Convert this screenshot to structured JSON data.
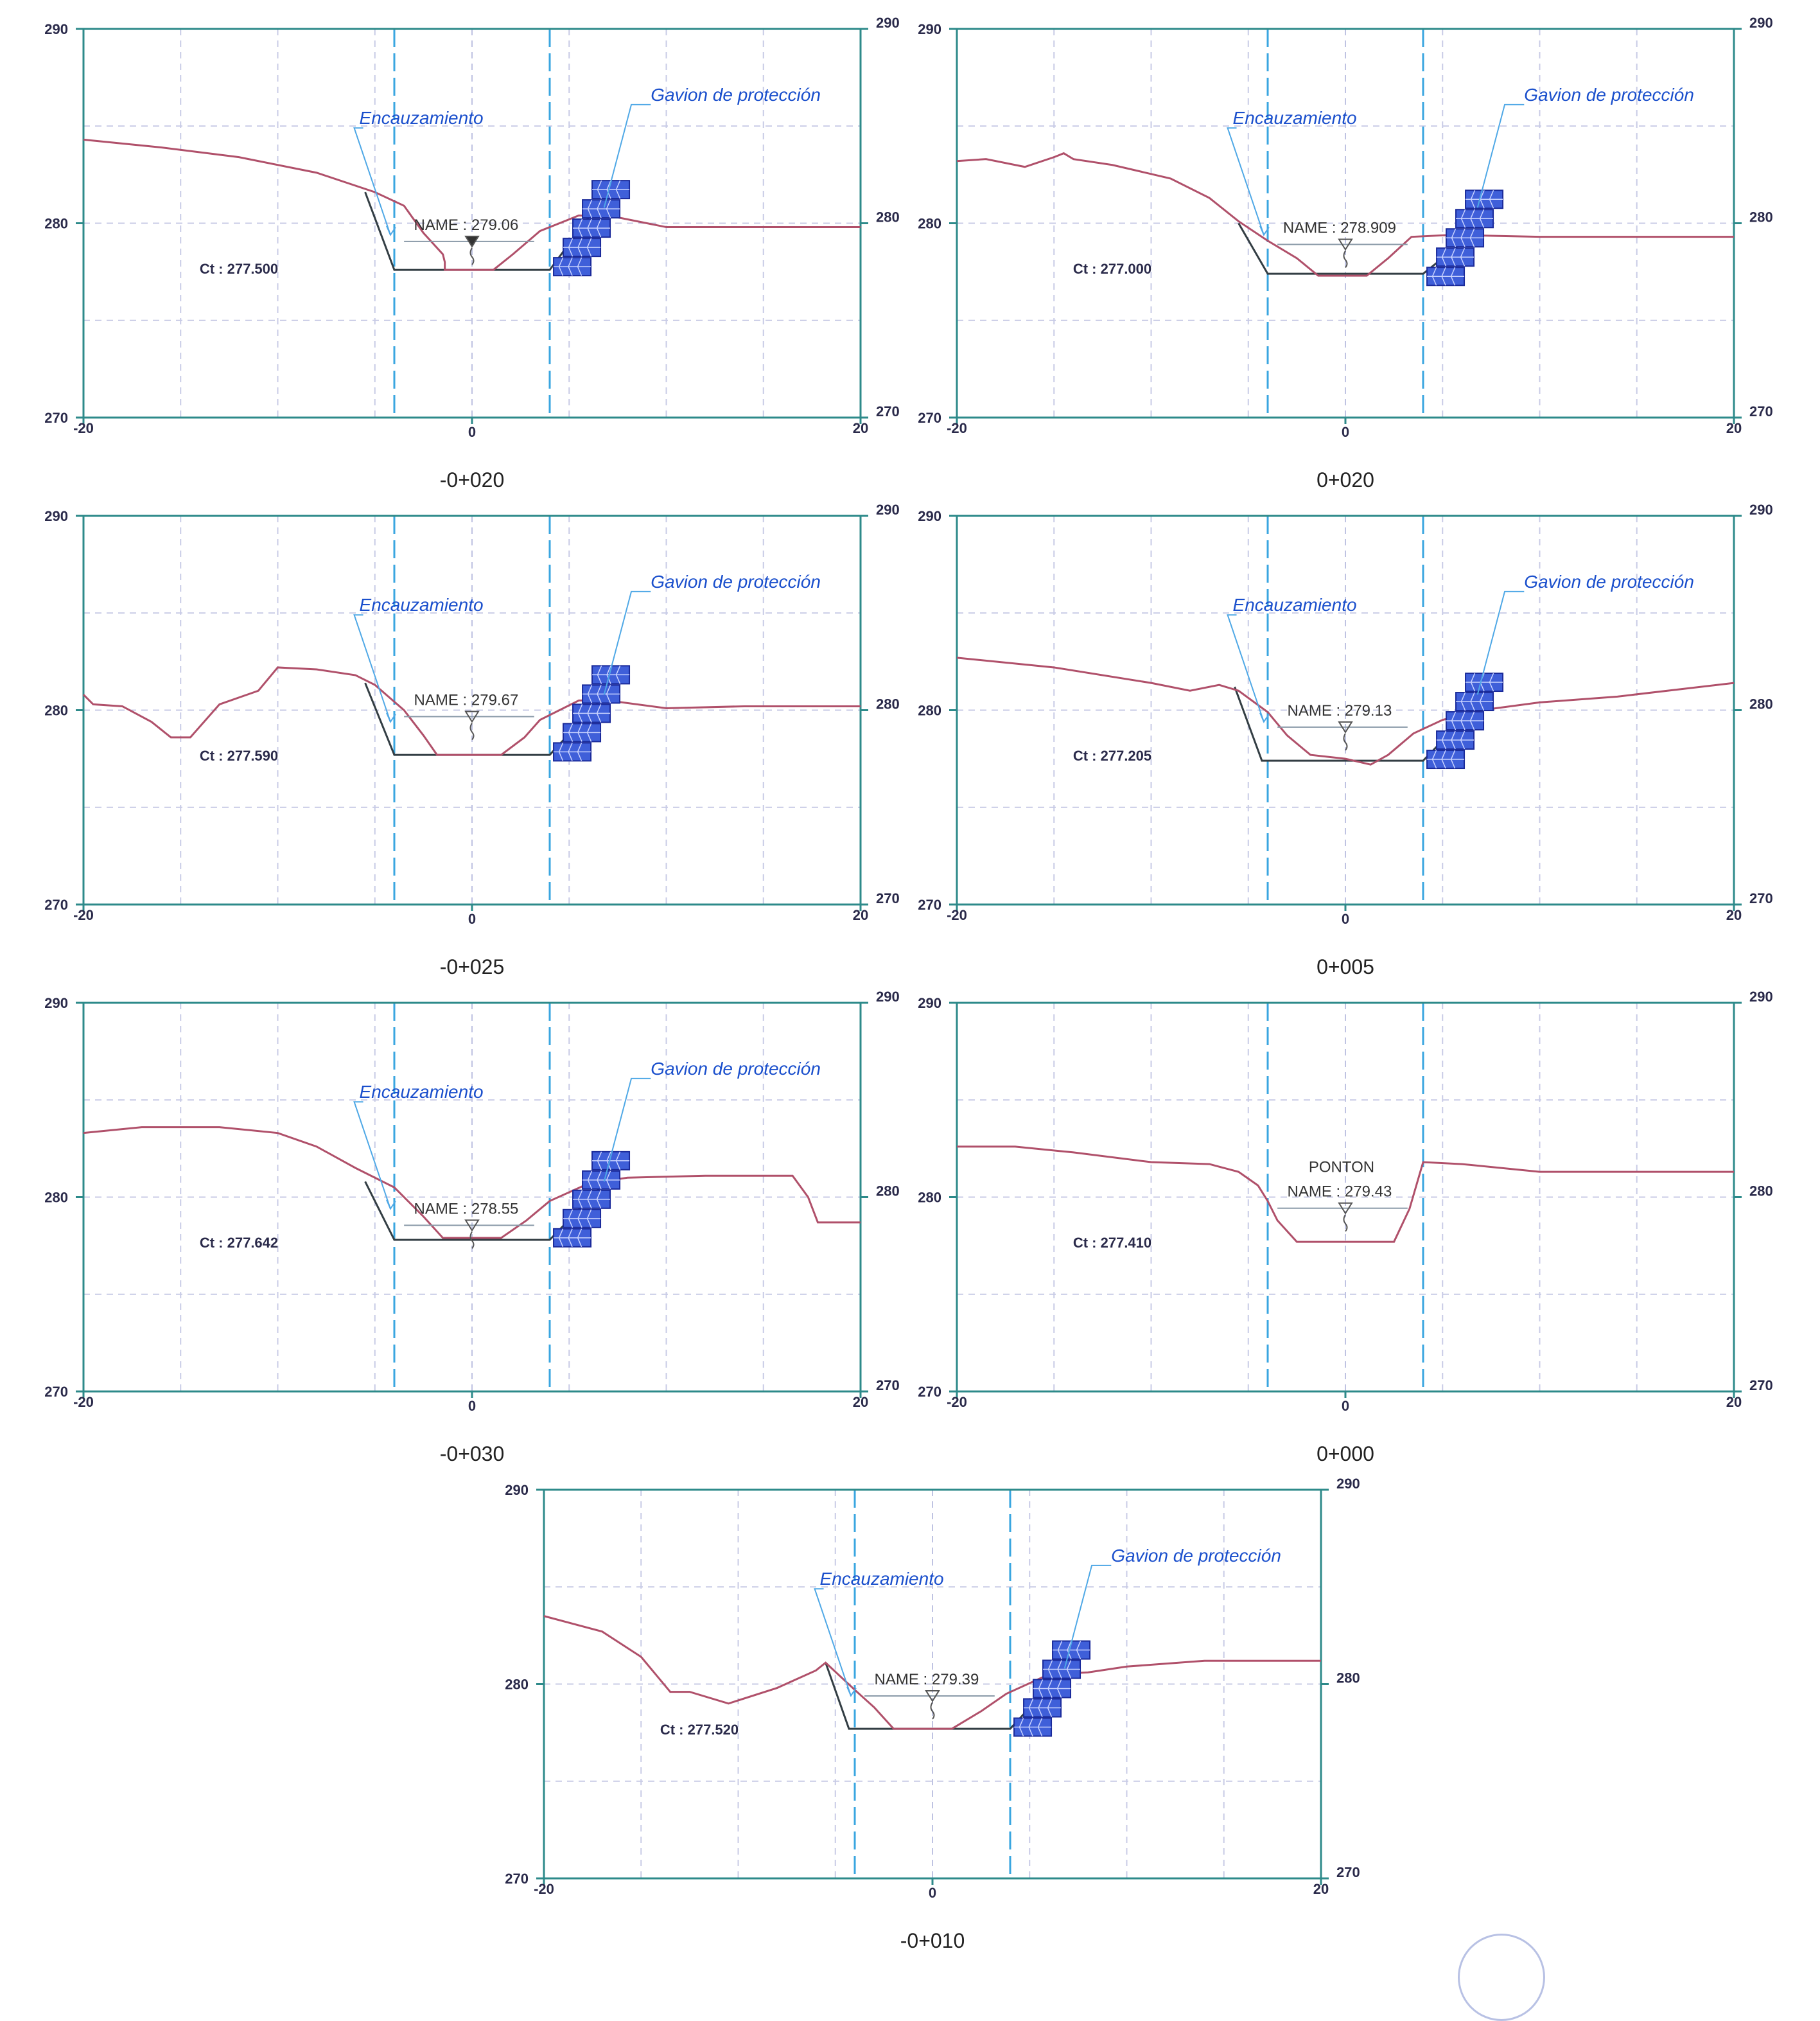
{
  "charts": [
    {
      "title": "-0+020",
      "ct": "Ct : 277.500",
      "name_label": "NAME : 279.06",
      "ponton_label": "",
      "channel_label": "Encauzamiento",
      "gabion_label": "Gavion de protección",
      "has_channel": true,
      "has_gabion": true,
      "wl_filled": true,
      "x_ticks": [
        "-20",
        "0",
        "20"
      ],
      "y_ticks": [
        "270",
        "280",
        "290"
      ],
      "y_ticks_right": [
        "270",
        "280",
        "290"
      ],
      "chart_data": {
        "type": "line",
        "xlim": [
          -20,
          20
        ],
        "ylim": [
          270,
          290
        ],
        "grid": true,
        "water_level": 279.06,
        "bed_level": 277.5,
        "terrain": [
          [
            -20,
            284.3
          ],
          [
            -16,
            283.9
          ],
          [
            -12,
            283.4
          ],
          [
            -8,
            282.6
          ],
          [
            -5,
            281.6
          ],
          [
            -3.5,
            280.9
          ],
          [
            -2.5,
            279.5
          ],
          [
            -1.5,
            278.4
          ],
          [
            -1.5,
            278.4
          ],
          [
            -1.4,
            278.0
          ],
          [
            -1.4,
            277.6
          ],
          [
            1.1,
            277.6
          ],
          [
            2.1,
            278.4
          ],
          [
            3.5,
            279.6
          ],
          [
            5.5,
            280.4
          ],
          [
            7.5,
            280.3
          ],
          [
            10,
            279.8
          ],
          [
            14,
            279.8
          ],
          [
            20,
            279.8
          ]
        ],
        "channel": [
          [
            -5.5,
            281.6
          ],
          [
            -4,
            277.6
          ],
          [
            4,
            277.6
          ],
          [
            6,
            280.3
          ]
        ]
      }
    },
    {
      "title": "0+020",
      "ct": "Ct : 277.000",
      "name_label": "NAME : 278.909",
      "ponton_label": "",
      "channel_label": "Encauzamiento",
      "gabion_label": "Gavion de protección",
      "has_channel": true,
      "has_gabion": true,
      "wl_filled": false,
      "x_ticks": [
        "-20",
        "0",
        "20"
      ],
      "y_ticks": [
        "270",
        "280",
        "290"
      ],
      "y_ticks_right": [
        "270",
        "280",
        "290"
      ],
      "chart_data": {
        "type": "line",
        "xlim": [
          -20,
          20
        ],
        "ylim": [
          270,
          290
        ],
        "grid": true,
        "water_level": 278.909,
        "bed_level": 277.0,
        "terrain": [
          [
            -20,
            283.2
          ],
          [
            -18.5,
            283.3
          ],
          [
            -16.5,
            282.9
          ],
          [
            -15,
            283.4
          ],
          [
            -14.5,
            283.6
          ],
          [
            -14,
            283.3
          ],
          [
            -12,
            283.0
          ],
          [
            -9,
            282.3
          ],
          [
            -7,
            281.3
          ],
          [
            -5.5,
            280.1
          ],
          [
            -4,
            279.1
          ],
          [
            -2.5,
            278.2
          ],
          [
            -1.4,
            277.3
          ],
          [
            1.1,
            277.3
          ],
          [
            2.2,
            278.2
          ],
          [
            3.4,
            279.3
          ],
          [
            5.5,
            279.4
          ],
          [
            10,
            279.3
          ],
          [
            20,
            279.3
          ]
        ],
        "channel": [
          [
            -5.5,
            280.0
          ],
          [
            -4,
            277.4
          ],
          [
            4,
            277.4
          ],
          [
            6.5,
            279.4
          ]
        ]
      }
    },
    {
      "title": "-0+025",
      "ct": "Ct : 277.590",
      "name_label": "NAME : 279.67",
      "ponton_label": "",
      "channel_label": "Encauzamiento",
      "gabion_label": "Gavion de protección",
      "has_channel": true,
      "has_gabion": true,
      "wl_filled": false,
      "x_ticks": [
        "-20",
        "0",
        "20"
      ],
      "y_ticks": [
        "270",
        "280",
        "290"
      ],
      "y_ticks_right": [
        "270",
        "280",
        "290"
      ],
      "chart_data": {
        "type": "line",
        "xlim": [
          -20,
          20
        ],
        "ylim": [
          270,
          290
        ],
        "grid": true,
        "water_level": 279.67,
        "bed_level": 277.59,
        "terrain": [
          [
            -20,
            280.8
          ],
          [
            -19.5,
            280.3
          ],
          [
            -18,
            280.2
          ],
          [
            -16.5,
            279.4
          ],
          [
            -15.5,
            278.6
          ],
          [
            -14.5,
            278.6
          ],
          [
            -13,
            280.3
          ],
          [
            -11,
            281.0
          ],
          [
            -10,
            282.2
          ],
          [
            -8,
            282.1
          ],
          [
            -6,
            281.8
          ],
          [
            -5,
            281.3
          ],
          [
            -3.5,
            280.0
          ],
          [
            -2.5,
            278.7
          ],
          [
            -1.8,
            277.7
          ],
          [
            1.5,
            277.7
          ],
          [
            2.7,
            278.6
          ],
          [
            3.5,
            279.5
          ],
          [
            5.5,
            280.5
          ],
          [
            7,
            280.5
          ],
          [
            10,
            280.1
          ],
          [
            14,
            280.2
          ],
          [
            20,
            280.2
          ]
        ],
        "channel": [
          [
            -5.5,
            281.4
          ],
          [
            -4,
            277.7
          ],
          [
            4,
            277.7
          ],
          [
            6.5,
            280.4
          ]
        ]
      }
    },
    {
      "title": "0+005",
      "ct": "Ct : 277.205",
      "name_label": "NAME : 279.13",
      "ponton_label": "",
      "channel_label": "Encauzamiento",
      "gabion_label": "Gavion de protección",
      "has_channel": true,
      "has_gabion": true,
      "wl_filled": false,
      "x_ticks": [
        "-20",
        "0",
        "20"
      ],
      "y_ticks": [
        "270",
        "280",
        "290"
      ],
      "y_ticks_right": [
        "270",
        "280",
        "290"
      ],
      "chart_data": {
        "type": "line",
        "xlim": [
          -20,
          20
        ],
        "ylim": [
          270,
          290
        ],
        "grid": true,
        "water_level": 279.13,
        "bed_level": 277.205,
        "terrain": [
          [
            -20,
            282.7
          ],
          [
            -15,
            282.2
          ],
          [
            -10,
            281.4
          ],
          [
            -8,
            281.0
          ],
          [
            -6.5,
            281.3
          ],
          [
            -5.5,
            281.0
          ],
          [
            -4,
            279.9
          ],
          [
            -3,
            278.7
          ],
          [
            -1.8,
            277.7
          ],
          [
            0,
            277.5
          ],
          [
            1.3,
            277.2
          ],
          [
            2.2,
            277.7
          ],
          [
            3.5,
            278.8
          ],
          [
            5,
            279.5
          ],
          [
            7,
            280.0
          ],
          [
            10,
            280.4
          ],
          [
            14,
            280.7
          ],
          [
            20,
            281.4
          ]
        ],
        "channel": [
          [
            -5.7,
            281.2
          ],
          [
            -4.3,
            277.4
          ],
          [
            4,
            277.4
          ],
          [
            7,
            280.5
          ]
        ]
      }
    },
    {
      "title": "-0+030",
      "ct": "Ct : 277.642",
      "name_label": "NAME : 278.55",
      "ponton_label": "",
      "channel_label": "Encauzamiento",
      "gabion_label": "Gavion de protección",
      "has_channel": true,
      "has_gabion": true,
      "wl_filled": false,
      "x_ticks": [
        "-20",
        "0",
        "20"
      ],
      "y_ticks": [
        "270",
        "280",
        "290"
      ],
      "y_ticks_right": [
        "270",
        "280",
        "290"
      ],
      "chart_data": {
        "type": "line",
        "xlim": [
          -20,
          20
        ],
        "ylim": [
          270,
          290
        ],
        "grid": true,
        "water_level": 278.55,
        "bed_level": 277.642,
        "terrain": [
          [
            -20,
            283.3
          ],
          [
            -17,
            283.6
          ],
          [
            -13,
            283.6
          ],
          [
            -10,
            283.3
          ],
          [
            -8,
            282.6
          ],
          [
            -6,
            281.5
          ],
          [
            -4,
            280.5
          ],
          [
            -2.5,
            279.0
          ],
          [
            -1.5,
            277.9
          ],
          [
            1.5,
            277.9
          ],
          [
            2.8,
            278.8
          ],
          [
            4,
            279.8
          ],
          [
            6,
            280.7
          ],
          [
            8,
            281.0
          ],
          [
            12,
            281.1
          ],
          [
            16.5,
            281.1
          ],
          [
            17.3,
            280.0
          ],
          [
            17.8,
            278.7
          ],
          [
            20,
            278.7
          ]
        ],
        "channel": [
          [
            -5.5,
            280.8
          ],
          [
            -4,
            277.8
          ],
          [
            4,
            277.8
          ],
          [
            6.8,
            280.7
          ]
        ]
      }
    },
    {
      "title": "0+000",
      "ct": "Ct : 277.410",
      "name_label": "NAME : 279.43",
      "ponton_label": "PONTON",
      "channel_label": "",
      "gabion_label": "",
      "has_channel": false,
      "has_gabion": false,
      "wl_filled": false,
      "x_ticks": [
        "-20",
        "0",
        "20"
      ],
      "y_ticks": [
        "270",
        "280",
        "290"
      ],
      "y_ticks_right": [
        "270",
        "280",
        "290"
      ],
      "chart_data": {
        "type": "line",
        "xlim": [
          -20,
          20
        ],
        "ylim": [
          270,
          290
        ],
        "grid": true,
        "water_level": 279.43,
        "bed_level": 277.41,
        "terrain": [
          [
            -20,
            282.6
          ],
          [
            -17,
            282.6
          ],
          [
            -14,
            282.3
          ],
          [
            -10,
            281.8
          ],
          [
            -7,
            281.7
          ],
          [
            -5.5,
            281.3
          ],
          [
            -4.5,
            280.6
          ],
          [
            -4,
            279.8
          ],
          [
            -3.5,
            278.8
          ],
          [
            -2.5,
            277.7
          ],
          [
            2.5,
            277.7
          ],
          [
            3.3,
            279.4
          ],
          [
            4,
            281.8
          ],
          [
            6,
            281.7
          ],
          [
            10,
            281.3
          ],
          [
            14,
            281.3
          ],
          [
            20,
            281.3
          ]
        ],
        "channel": []
      }
    },
    {
      "title": "-0+010",
      "ct": "Ct : 277.520",
      "name_label": "NAME : 279.39",
      "ponton_label": "",
      "channel_label": "Encauzamiento",
      "gabion_label": "Gavion de protección",
      "has_channel": true,
      "has_gabion": true,
      "wl_filled": false,
      "x_ticks": [
        "-20",
        "0",
        "20"
      ],
      "y_ticks": [
        "270",
        "280",
        "290"
      ],
      "y_ticks_right": [
        "270",
        "280",
        "290"
      ],
      "chart_data": {
        "type": "line",
        "xlim": [
          -20,
          20
        ],
        "ylim": [
          270,
          290
        ],
        "grid": true,
        "water_level": 279.39,
        "bed_level": 277.52,
        "terrain": [
          [
            -20,
            283.5
          ],
          [
            -17,
            282.7
          ],
          [
            -15,
            281.4
          ],
          [
            -13.5,
            279.6
          ],
          [
            -12.5,
            279.6
          ],
          [
            -10.5,
            279.0
          ],
          [
            -8,
            279.8
          ],
          [
            -6,
            280.7
          ],
          [
            -5.5,
            281.1
          ],
          [
            -4,
            279.7
          ],
          [
            -3,
            278.8
          ],
          [
            -2,
            277.7
          ],
          [
            1,
            277.7
          ],
          [
            2.5,
            278.6
          ],
          [
            3.8,
            279.5
          ],
          [
            6,
            280.5
          ],
          [
            8,
            280.6
          ],
          [
            10,
            280.9
          ],
          [
            14,
            281.2
          ],
          [
            20,
            281.2
          ]
        ],
        "channel": [
          [
            -5.5,
            281.1
          ],
          [
            -4.3,
            277.7
          ],
          [
            4,
            277.7
          ],
          [
            6.5,
            280.4
          ]
        ]
      }
    }
  ]
}
